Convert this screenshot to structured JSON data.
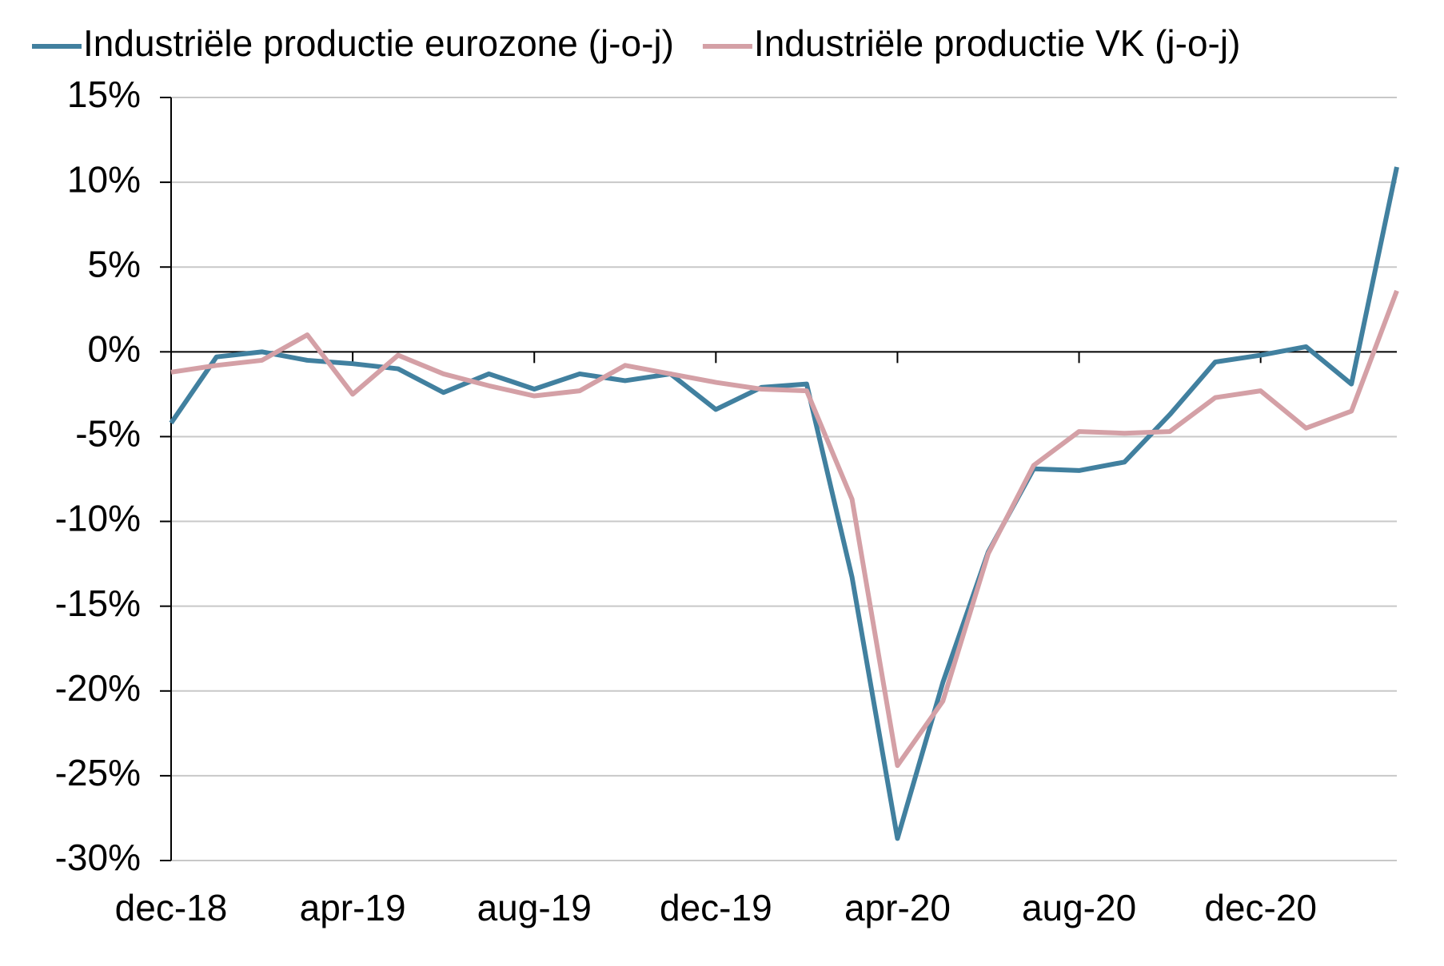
{
  "chart_data": {
    "type": "line",
    "categories": [
      "dec-18",
      null,
      null,
      null,
      "apr-19",
      null,
      null,
      null,
      "aug-19",
      null,
      null,
      null,
      "dec-19",
      null,
      null,
      null,
      "apr-20",
      null,
      null,
      null,
      "aug-20",
      null,
      null,
      null,
      "dec-20",
      null,
      null,
      null
    ],
    "series": [
      {
        "name": "Industriële productie eurozone (j-o-j)",
        "color": "#41809f",
        "values": [
          -4.2,
          -0.3,
          0.0,
          -0.5,
          -0.7,
          -1.0,
          -2.4,
          -1.3,
          -2.2,
          -1.3,
          -1.7,
          -1.3,
          -3.4,
          -2.1,
          -1.9,
          -13.3,
          -28.7,
          -19.5,
          -11.8,
          -6.9,
          -7.0,
          -6.5,
          -3.7,
          -0.6,
          -0.2,
          0.3,
          -1.9,
          10.9
        ]
      },
      {
        "name": "Industriële productie VK (j-o-j)",
        "color": "#d4a0a6",
        "values": [
          -1.2,
          -0.8,
          -0.5,
          1.0,
          -2.5,
          -0.2,
          -1.3,
          -2.0,
          -2.6,
          -2.3,
          -0.8,
          -1.3,
          -1.8,
          -2.2,
          -2.3,
          -8.7,
          -24.4,
          -20.6,
          -11.9,
          -6.7,
          -4.7,
          -4.8,
          -4.7,
          -2.7,
          -2.3,
          -4.5,
          -3.5,
          3.6
        ]
      }
    ],
    "ylim": [
      -30,
      15
    ],
    "yticks": [
      {
        "value": 15,
        "label": "15%"
      },
      {
        "value": 10,
        "label": "10%"
      },
      {
        "value": 5,
        "label": "5%"
      },
      {
        "value": 0,
        "label": "0%"
      },
      {
        "value": -5,
        "label": "-5%"
      },
      {
        "value": -10,
        "label": "-10%"
      },
      {
        "value": -15,
        "label": "-15%"
      },
      {
        "value": -20,
        "label": "-20%"
      },
      {
        "value": -25,
        "label": "-25%"
      },
      {
        "value": -30,
        "label": "-30%"
      }
    ],
    "grid": true,
    "legend": "top"
  }
}
